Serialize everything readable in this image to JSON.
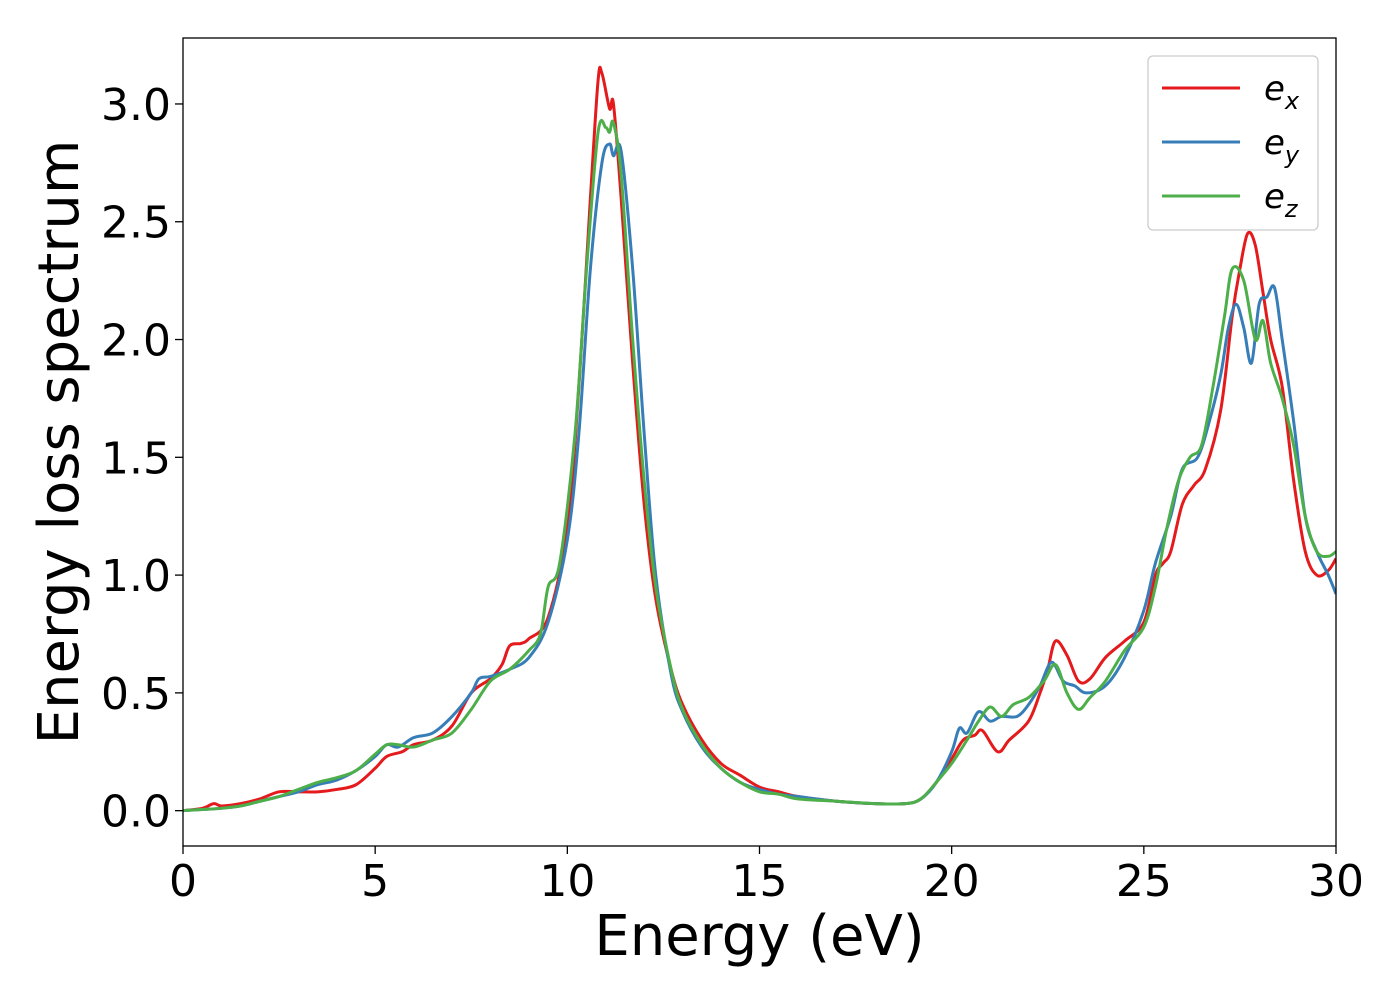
{
  "chart_data": {
    "type": "line",
    "xlabel": "Energy (eV)",
    "ylabel": "Energy loss spectrum",
    "xlim": [
      0,
      30
    ],
    "ylim": [
      -0.15,
      3.28
    ],
    "xticks": [
      0,
      5,
      10,
      15,
      20,
      25,
      30
    ],
    "xtick_labels": [
      "0",
      "5",
      "10",
      "15",
      "20",
      "25",
      "30"
    ],
    "yticks": [
      0.0,
      0.5,
      1.0,
      1.5,
      2.0,
      2.5,
      3.0
    ],
    "ytick_labels": [
      "0.0",
      "0.5",
      "1.0",
      "1.5",
      "2.0",
      "2.5",
      "3.0"
    ],
    "grid": false,
    "legend_position": "top-right",
    "series": [
      {
        "name": "e",
        "subscript": "x",
        "color": "#e41a1c",
        "points": [
          [
            0,
            0
          ],
          [
            0.5,
            0.01
          ],
          [
            0.8,
            0.03
          ],
          [
            1,
            0.02
          ],
          [
            1.5,
            0.03
          ],
          [
            2,
            0.05
          ],
          [
            2.5,
            0.08
          ],
          [
            3,
            0.08
          ],
          [
            3.5,
            0.08
          ],
          [
            4,
            0.09
          ],
          [
            4.5,
            0.11
          ],
          [
            5,
            0.18
          ],
          [
            5.3,
            0.23
          ],
          [
            5.7,
            0.25
          ],
          [
            6,
            0.28
          ],
          [
            6.5,
            0.3
          ],
          [
            7,
            0.36
          ],
          [
            7.5,
            0.5
          ],
          [
            8,
            0.56
          ],
          [
            8.3,
            0.62
          ],
          [
            8.5,
            0.7
          ],
          [
            8.8,
            0.71
          ],
          [
            9,
            0.73
          ],
          [
            9.5,
            0.82
          ],
          [
            10,
            1.2
          ],
          [
            10.3,
            1.8
          ],
          [
            10.6,
            2.6
          ],
          [
            10.8,
            3.1
          ],
          [
            10.9,
            3.13
          ],
          [
            11.1,
            2.98
          ],
          [
            11.2,
            3.0
          ],
          [
            11.4,
            2.6
          ],
          [
            11.7,
            1.9
          ],
          [
            12,
            1.3
          ],
          [
            12.3,
            0.9
          ],
          [
            12.7,
            0.6
          ],
          [
            13,
            0.45
          ],
          [
            13.5,
            0.3
          ],
          [
            14,
            0.2
          ],
          [
            14.5,
            0.15
          ],
          [
            15,
            0.1
          ],
          [
            15.5,
            0.08
          ],
          [
            16,
            0.06
          ],
          [
            17,
            0.04
          ],
          [
            18,
            0.03
          ],
          [
            18.8,
            0.03
          ],
          [
            19.2,
            0.05
          ],
          [
            19.6,
            0.12
          ],
          [
            20,
            0.22
          ],
          [
            20.3,
            0.3
          ],
          [
            20.6,
            0.32
          ],
          [
            20.8,
            0.34
          ],
          [
            21.2,
            0.25
          ],
          [
            21.5,
            0.3
          ],
          [
            22,
            0.38
          ],
          [
            22.3,
            0.5
          ],
          [
            22.5,
            0.6
          ],
          [
            22.7,
            0.72
          ],
          [
            23,
            0.66
          ],
          [
            23.3,
            0.55
          ],
          [
            23.6,
            0.56
          ],
          [
            24,
            0.65
          ],
          [
            24.5,
            0.72
          ],
          [
            25,
            0.8
          ],
          [
            25.3,
            1.0
          ],
          [
            25.5,
            1.05
          ],
          [
            25.7,
            1.1
          ],
          [
            26,
            1.3
          ],
          [
            26.3,
            1.38
          ],
          [
            26.6,
            1.45
          ],
          [
            27,
            1.7
          ],
          [
            27.3,
            2.1
          ],
          [
            27.5,
            2.3
          ],
          [
            27.7,
            2.45
          ],
          [
            27.9,
            2.4
          ],
          [
            28.1,
            2.2
          ],
          [
            28.3,
            2.0
          ],
          [
            28.6,
            1.8
          ],
          [
            28.9,
            1.4
          ],
          [
            29.2,
            1.1
          ],
          [
            29.5,
            1.0
          ],
          [
            29.8,
            1.02
          ],
          [
            30,
            1.07
          ]
        ]
      },
      {
        "name": "e",
        "subscript": "y",
        "color": "#377eb8",
        "points": [
          [
            0,
            0
          ],
          [
            0.5,
            0.005
          ],
          [
            1,
            0.01
          ],
          [
            1.5,
            0.02
          ],
          [
            2,
            0.04
          ],
          [
            2.5,
            0.06
          ],
          [
            3,
            0.08
          ],
          [
            3.5,
            0.11
          ],
          [
            4,
            0.13
          ],
          [
            4.5,
            0.17
          ],
          [
            5,
            0.23
          ],
          [
            5.3,
            0.28
          ],
          [
            5.6,
            0.27
          ],
          [
            6,
            0.31
          ],
          [
            6.5,
            0.33
          ],
          [
            7,
            0.4
          ],
          [
            7.5,
            0.5
          ],
          [
            7.7,
            0.56
          ],
          [
            8,
            0.57
          ],
          [
            8.5,
            0.6
          ],
          [
            9,
            0.65
          ],
          [
            9.5,
            0.8
          ],
          [
            10,
            1.15
          ],
          [
            10.3,
            1.6
          ],
          [
            10.6,
            2.3
          ],
          [
            10.9,
            2.75
          ],
          [
            11.1,
            2.83
          ],
          [
            11.2,
            2.78
          ],
          [
            11.4,
            2.8
          ],
          [
            11.7,
            2.3
          ],
          [
            12,
            1.6
          ],
          [
            12.3,
            1.0
          ],
          [
            12.7,
            0.58
          ],
          [
            13,
            0.42
          ],
          [
            13.5,
            0.27
          ],
          [
            14,
            0.18
          ],
          [
            14.5,
            0.12
          ],
          [
            15,
            0.09
          ],
          [
            15.5,
            0.07
          ],
          [
            16,
            0.06
          ],
          [
            17,
            0.04
          ],
          [
            18,
            0.03
          ],
          [
            18.8,
            0.03
          ],
          [
            19.2,
            0.05
          ],
          [
            19.6,
            0.12
          ],
          [
            20,
            0.25
          ],
          [
            20.2,
            0.35
          ],
          [
            20.4,
            0.33
          ],
          [
            20.7,
            0.42
          ],
          [
            21,
            0.38
          ],
          [
            21.3,
            0.4
          ],
          [
            21.7,
            0.4
          ],
          [
            22,
            0.45
          ],
          [
            22.3,
            0.53
          ],
          [
            22.6,
            0.63
          ],
          [
            22.9,
            0.55
          ],
          [
            23.2,
            0.53
          ],
          [
            23.5,
            0.5
          ],
          [
            24,
            0.53
          ],
          [
            24.5,
            0.65
          ],
          [
            25,
            0.85
          ],
          [
            25.3,
            1.05
          ],
          [
            25.7,
            1.25
          ],
          [
            26,
            1.45
          ],
          [
            26.4,
            1.5
          ],
          [
            26.7,
            1.65
          ],
          [
            27,
            1.85
          ],
          [
            27.2,
            2.05
          ],
          [
            27.4,
            2.15
          ],
          [
            27.6,
            2.05
          ],
          [
            27.8,
            1.9
          ],
          [
            28,
            2.15
          ],
          [
            28.2,
            2.18
          ],
          [
            28.4,
            2.22
          ],
          [
            28.6,
            2.0
          ],
          [
            28.9,
            1.65
          ],
          [
            29.2,
            1.25
          ],
          [
            29.5,
            1.1
          ],
          [
            29.8,
            1.0
          ],
          [
            30,
            0.92
          ]
        ]
      },
      {
        "name": "e",
        "subscript": "z",
        "color": "#4daf4a",
        "points": [
          [
            0,
            0
          ],
          [
            0.5,
            0.005
          ],
          [
            1,
            0.01
          ],
          [
            1.5,
            0.02
          ],
          [
            2,
            0.04
          ],
          [
            2.5,
            0.06
          ],
          [
            3,
            0.09
          ],
          [
            3.5,
            0.12
          ],
          [
            4,
            0.14
          ],
          [
            4.5,
            0.17
          ],
          [
            5,
            0.24
          ],
          [
            5.3,
            0.28
          ],
          [
            5.6,
            0.28
          ],
          [
            6,
            0.27
          ],
          [
            6.5,
            0.3
          ],
          [
            7,
            0.33
          ],
          [
            7.5,
            0.43
          ],
          [
            8,
            0.55
          ],
          [
            8.5,
            0.6
          ],
          [
            9,
            0.68
          ],
          [
            9.3,
            0.75
          ],
          [
            9.5,
            0.95
          ],
          [
            9.8,
            1.05
          ],
          [
            10.2,
            1.6
          ],
          [
            10.5,
            2.3
          ],
          [
            10.8,
            2.88
          ],
          [
            11,
            2.9
          ],
          [
            11.1,
            2.88
          ],
          [
            11.2,
            2.92
          ],
          [
            11.4,
            2.7
          ],
          [
            11.7,
            2.0
          ],
          [
            12,
            1.4
          ],
          [
            12.3,
            0.95
          ],
          [
            12.7,
            0.6
          ],
          [
            13,
            0.43
          ],
          [
            13.5,
            0.28
          ],
          [
            14,
            0.18
          ],
          [
            14.5,
            0.12
          ],
          [
            15,
            0.08
          ],
          [
            15.5,
            0.07
          ],
          [
            16,
            0.05
          ],
          [
            17,
            0.04
          ],
          [
            18,
            0.03
          ],
          [
            18.8,
            0.03
          ],
          [
            19.2,
            0.05
          ],
          [
            19.6,
            0.12
          ],
          [
            20,
            0.2
          ],
          [
            20.4,
            0.3
          ],
          [
            20.7,
            0.38
          ],
          [
            21,
            0.44
          ],
          [
            21.3,
            0.4
          ],
          [
            21.6,
            0.45
          ],
          [
            22,
            0.48
          ],
          [
            22.4,
            0.55
          ],
          [
            22.7,
            0.62
          ],
          [
            23,
            0.5
          ],
          [
            23.3,
            0.43
          ],
          [
            23.6,
            0.48
          ],
          [
            24,
            0.55
          ],
          [
            24.5,
            0.68
          ],
          [
            25,
            0.78
          ],
          [
            25.3,
            0.95
          ],
          [
            25.6,
            1.2
          ],
          [
            25.9,
            1.4
          ],
          [
            26.2,
            1.5
          ],
          [
            26.5,
            1.55
          ],
          [
            26.8,
            1.8
          ],
          [
            27.1,
            2.1
          ],
          [
            27.3,
            2.3
          ],
          [
            27.6,
            2.25
          ],
          [
            27.9,
            2.0
          ],
          [
            28.1,
            2.08
          ],
          [
            28.3,
            1.9
          ],
          [
            28.6,
            1.75
          ],
          [
            28.9,
            1.55
          ],
          [
            29.2,
            1.25
          ],
          [
            29.5,
            1.1
          ],
          [
            29.8,
            1.08
          ],
          [
            30,
            1.1
          ]
        ]
      }
    ]
  }
}
